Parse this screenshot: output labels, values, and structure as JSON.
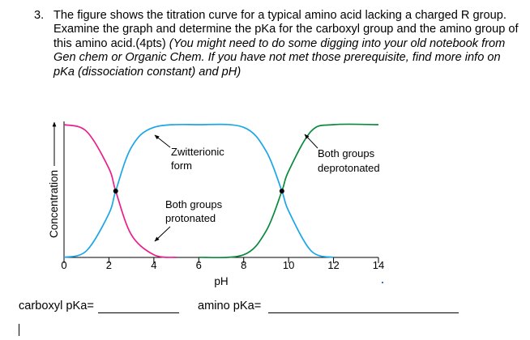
{
  "question": {
    "number": "3.",
    "text": "The figure shows the titration curve for a typical amino acid lacking a charged R group. Examine the graph and determine the pKa for the carboxyl group and the amino group of this amino acid.(4pts)",
    "hint": "(You might need to do some digging into your old notebook from Gen chem or Organic Chem. If you have not met those prerequisite, find more info on pKa (dissociation constant) and pH)"
  },
  "chart_data": {
    "type": "line",
    "xlabel": "pH",
    "ylabel": "Concentration",
    "x_ticks": [
      0,
      2,
      4,
      6,
      8,
      10,
      12,
      14
    ],
    "xlim": [
      0,
      14
    ],
    "series": [
      {
        "name": "Both groups protonated",
        "color": "#ec1c8c",
        "shape": "decreasing",
        "midpoint_pH": 2.3,
        "x": [
          0,
          1,
          2,
          2.3,
          3,
          4,
          5
        ],
        "y": [
          1.0,
          0.95,
          0.67,
          0.5,
          0.17,
          0.02,
          0.0
        ]
      },
      {
        "name": "Zwitterionic form",
        "color": "#1aa6e8",
        "shape": "rise-plateau-fall",
        "x": [
          0,
          1,
          2,
          2.3,
          3,
          4,
          6,
          8,
          9,
          9.7,
          10,
          11,
          12
        ],
        "y": [
          0.0,
          0.05,
          0.33,
          0.5,
          0.83,
          0.98,
          1.0,
          0.98,
          0.8,
          0.5,
          0.35,
          0.05,
          0.0
        ]
      },
      {
        "name": "Both groups deprotonated",
        "color": "#0a8a3c",
        "shape": "increasing",
        "midpoint_pH": 9.7,
        "x": [
          6,
          8,
          9,
          9.7,
          10,
          11,
          12,
          14
        ],
        "y": [
          0.0,
          0.02,
          0.2,
          0.5,
          0.65,
          0.95,
          1.0,
          1.0
        ]
      }
    ],
    "annotations": [
      {
        "text": "Zwitterionic form",
        "line1": "Zwitterionic",
        "line2": "form"
      },
      {
        "text": "Both groups protonated",
        "line1": "Both groups",
        "line2": "protonated"
      },
      {
        "text": "Both groups deprotonated",
        "line1": "Both groups",
        "line2": "deprotonated"
      }
    ],
    "intersection_points": [
      {
        "x": 2.3,
        "y": 0.5
      },
      {
        "x": 9.7,
        "y": 0.5
      }
    ]
  },
  "answers": {
    "carboxyl_label": "carboxyl pKa=",
    "amino_label": "amino pKa="
  },
  "colors": {
    "protonated": "#ec1c8c",
    "zwitterion": "#1aa6e8",
    "deprotonated": "#0a8a3c",
    "axis": "#000000"
  }
}
